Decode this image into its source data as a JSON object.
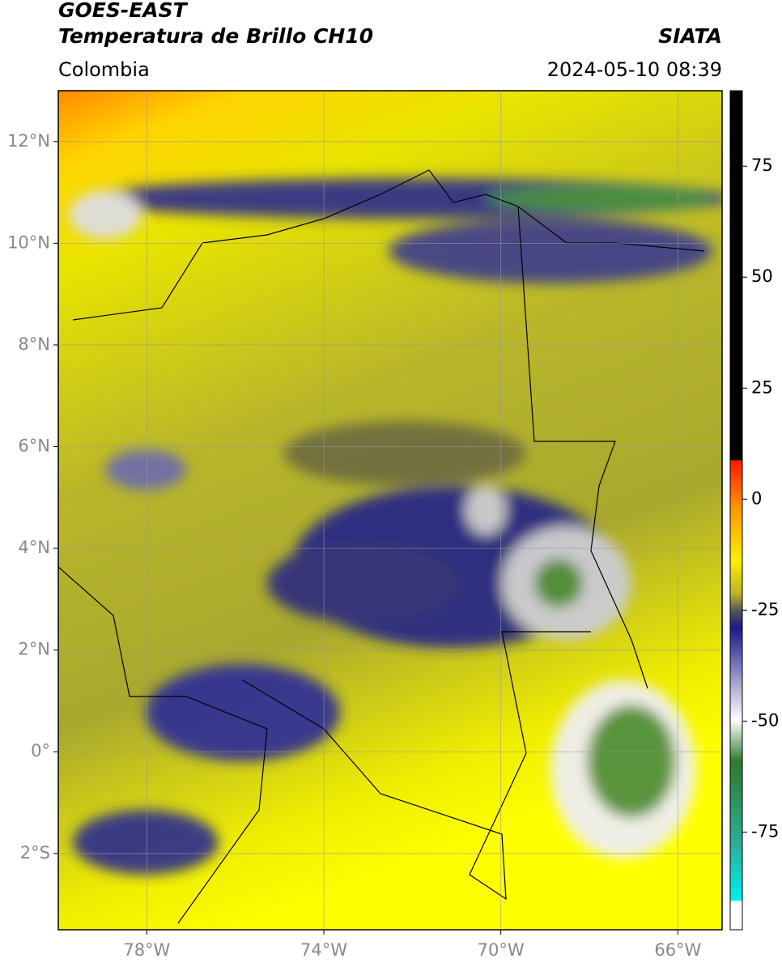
{
  "header": {
    "satellite": "GOES-EAST",
    "product": "Temperatura de Brillo CH10",
    "source": "SIATA",
    "region": "Colombia",
    "datetime": "2024-05-10 08:39"
  },
  "map": {
    "xlim": [
      -80,
      -65
    ],
    "ylim": [
      -3.5,
      13
    ],
    "xticks": [
      {
        "value": -78,
        "label": "78°W"
      },
      {
        "value": -74,
        "label": "74°W"
      },
      {
        "value": -70,
        "label": "70°W"
      },
      {
        "value": -66,
        "label": "66°W"
      }
    ],
    "yticks": [
      {
        "value": 12,
        "label": "12°N"
      },
      {
        "value": 10,
        "label": "10°N"
      },
      {
        "value": 8,
        "label": "8°N"
      },
      {
        "value": 6,
        "label": "6°N"
      },
      {
        "value": 4,
        "label": "4°N"
      },
      {
        "value": 2,
        "label": "2°N"
      },
      {
        "value": 0,
        "label": "0°"
      },
      {
        "value": -2,
        "label": "2°S"
      }
    ],
    "grid": true
  },
  "colorbar": {
    "ylim": [
      -97,
      92
    ],
    "yticks": [
      75,
      50,
      25,
      0,
      -25,
      -50,
      -75
    ]
  }
}
